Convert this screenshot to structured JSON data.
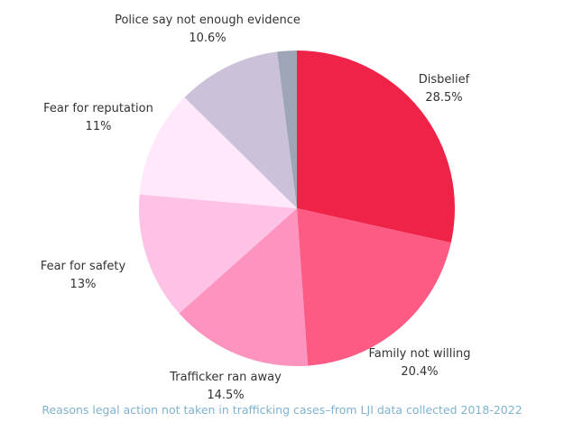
{
  "chart_data": {
    "type": "pie",
    "slices": [
      {
        "label": "Disbelief",
        "value_label": "28.5%",
        "value": 28.5,
        "color": "#ef2248"
      },
      {
        "label": "Family not willing",
        "value_label": "20.4%",
        "value": 20.4,
        "color": "#fd5b84"
      },
      {
        "label": "Trafficker ran away",
        "value_label": "14.5%",
        "value": 14.5,
        "color": "#fd93bf"
      },
      {
        "label": "Fear for safety",
        "value_label": "13%",
        "value": 13,
        "color": "#fec2e6"
      },
      {
        "label": "Fear for reputation",
        "value_label": "11%",
        "value": 11,
        "color": "#ffe8f9"
      },
      {
        "label": "Police say not enough evidence",
        "value_label": "10.6%",
        "value": 10.6,
        "color": "#cbc2d9"
      },
      {
        "label": "",
        "value_label": "",
        "value": 2.0,
        "color": "#9ea5b7"
      }
    ],
    "caption": "Reasons legal action not taken in trafficking cases–from LJI data collected 2018-2022"
  }
}
